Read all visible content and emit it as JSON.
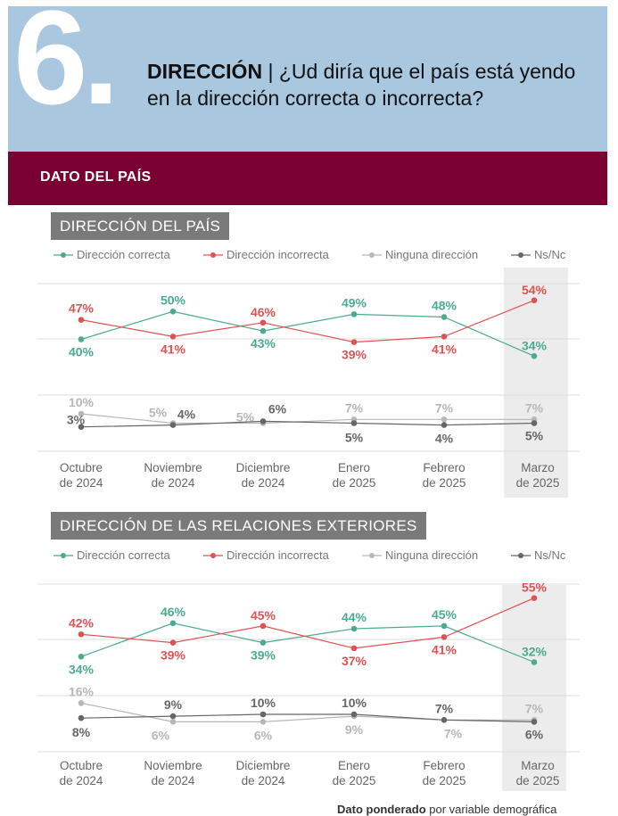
{
  "header": {
    "number": "6.",
    "title_bold": "DIRECCIÓN",
    "title_rest": " | ¿Ud diría que el país está yendo en la dirección correcta o incorrecta?"
  },
  "band": {
    "label": "DATO DEL PAÍS"
  },
  "legend": [
    "Dirección correcta",
    "Dirección incorrecta",
    "Ninguna dirección",
    "Ns/Nc"
  ],
  "colors": {
    "correcta": "#4aab91",
    "incorrecta": "#e05252",
    "ninguna": "#b7b7b7",
    "nsnc": "#666666"
  },
  "footer": {
    "bold": "Dato ponderado",
    "rest": " por variable demográfica"
  },
  "chart_data": [
    {
      "type": "line",
      "title": "DIRECCIÓN DEL PAÍS",
      "categories": [
        [
          "Octubre",
          "de 2024"
        ],
        [
          "Noviembre",
          "de 2024"
        ],
        [
          "Diciembre",
          "de 2024"
        ],
        [
          "Enero",
          "de 2025"
        ],
        [
          "Febrero",
          "de 2025"
        ],
        [
          "Marzo",
          "de 2025"
        ]
      ],
      "highlight_category": 5,
      "series": [
        {
          "name": "Dirección correcta",
          "values": [
            40,
            50,
            43,
            49,
            48,
            34
          ]
        },
        {
          "name": "Dirección incorrecta",
          "values": [
            47,
            41,
            46,
            39,
            41,
            54
          ]
        },
        {
          "name": "Ninguna dirección",
          "values": [
            10,
            5,
            5,
            7,
            7,
            7
          ]
        },
        {
          "name": "Ns/Nc",
          "values": [
            3,
            4,
            6,
            5,
            4,
            5
          ]
        }
      ],
      "upper_ylim": [
        20,
        60
      ],
      "lower_ylim": [
        -10,
        20
      ],
      "grid": true
    },
    {
      "type": "line",
      "title": "DIRECCIÓN DE LAS RELACIONES EXTERIORES",
      "categories": [
        [
          "Octubre",
          "de 2024"
        ],
        [
          "Noviembre",
          "de 2024"
        ],
        [
          "Diciembre",
          "de 2024"
        ],
        [
          "Enero",
          "de 2025"
        ],
        [
          "Febrero",
          "de 2025"
        ],
        [
          "Marzo",
          "de 2025"
        ]
      ],
      "highlight_category": 5,
      "series": [
        {
          "name": "Dirección correcta",
          "values": [
            34,
            46,
            39,
            44,
            45,
            32
          ]
        },
        {
          "name": "Dirección incorrecta",
          "values": [
            42,
            39,
            45,
            37,
            41,
            55
          ]
        },
        {
          "name": "Ninguna dirección",
          "values": [
            16,
            6,
            6,
            9,
            7,
            7
          ]
        },
        {
          "name": "Ns/Nc",
          "values": [
            8,
            9,
            10,
            10,
            7,
            6
          ]
        }
      ],
      "upper_ylim": [
        20,
        60
      ],
      "lower_ylim": [
        -10,
        20
      ],
      "grid": true
    }
  ]
}
